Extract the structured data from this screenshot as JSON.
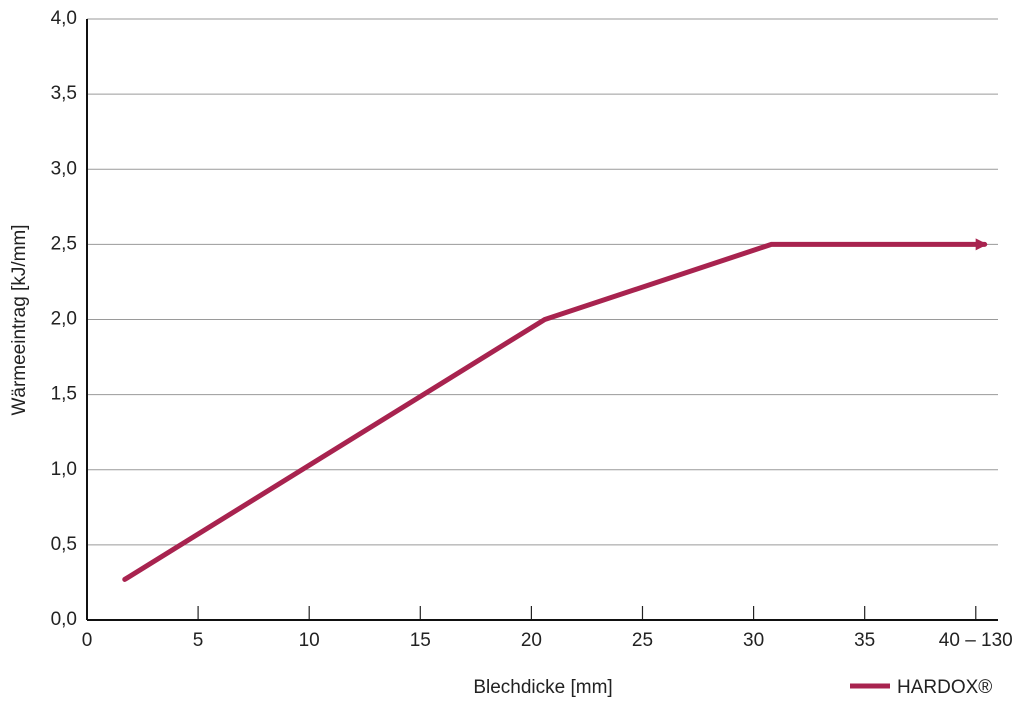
{
  "chart_data": {
    "type": "line",
    "xlabel": "Blechdicke [mm]",
    "ylabel": "Wärmeeintrag [kJ/mm]",
    "x": [
      1.7,
      20.6,
      30.8,
      40.4
    ],
    "series": [
      {
        "name": "HARDOX®",
        "color": "#a8234f",
        "values": [
          0.27,
          2.0,
          2.5,
          2.5
        ]
      }
    ],
    "xlim": [
      0,
      41
    ],
    "ylim": [
      0,
      4
    ],
    "xticks": [
      0,
      5,
      10,
      15,
      20,
      25,
      30,
      35,
      {
        "value": 40,
        "label": "40 – 130"
      }
    ],
    "yticks": [
      {
        "value": 0,
        "label": "0,0"
      },
      {
        "value": 0.5,
        "label": "0,5"
      },
      {
        "value": 1,
        "label": "1,0"
      },
      {
        "value": 1.5,
        "label": "1,5"
      },
      {
        "value": 2,
        "label": "2,0"
      },
      {
        "value": 2.5,
        "label": "2,5"
      },
      {
        "value": 3,
        "label": "3,0"
      },
      {
        "value": 3.5,
        "label": "3,5"
      },
      {
        "value": 4,
        "label": "4,0"
      }
    ],
    "grid": true,
    "legend": "bottom-right"
  }
}
